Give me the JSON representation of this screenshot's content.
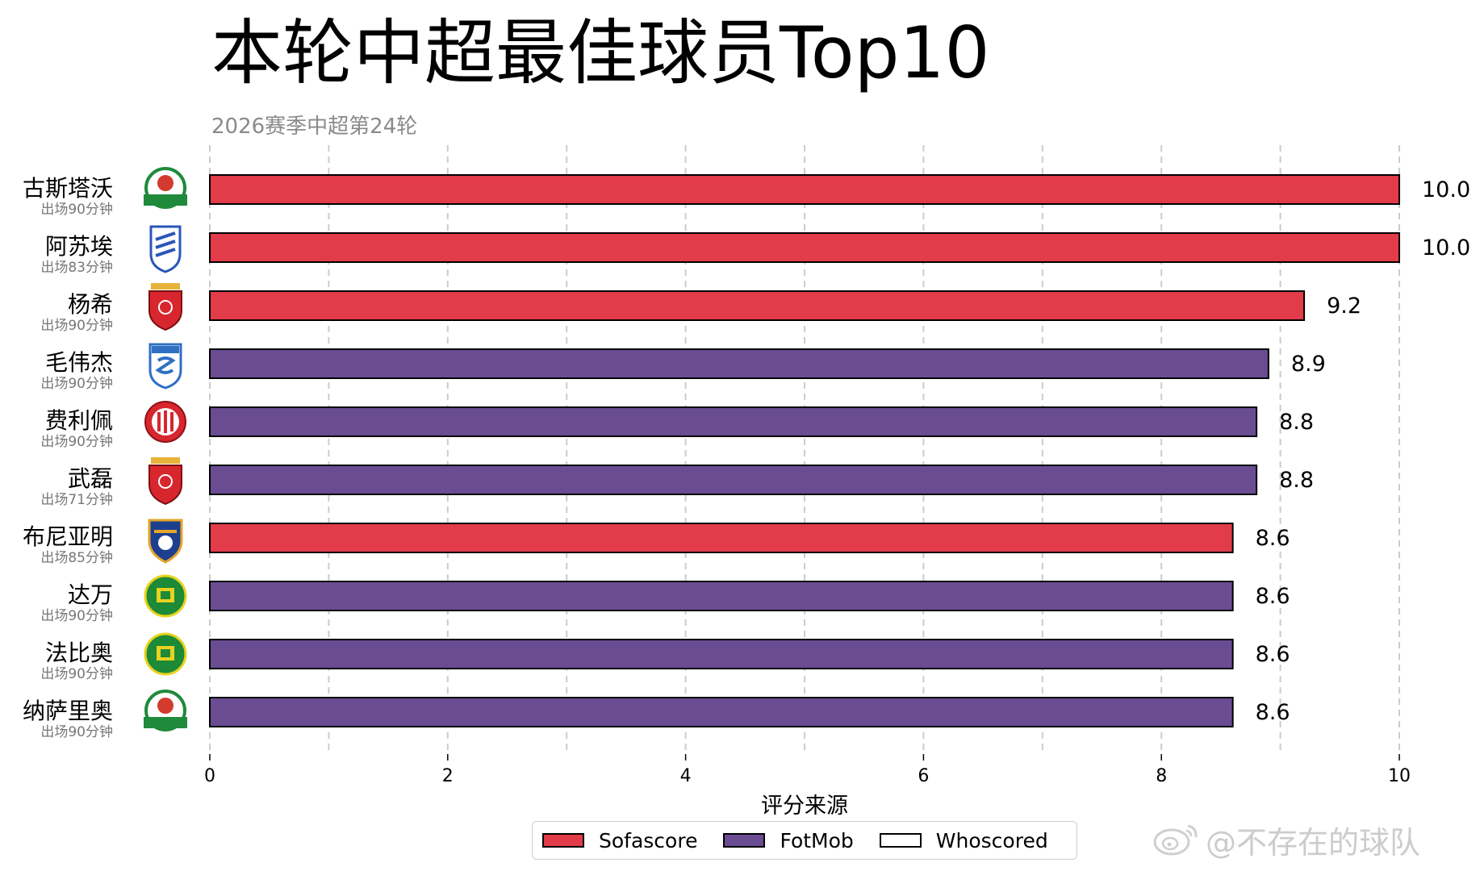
{
  "title": "本轮中超最佳球员Top10",
  "subtitle": "2026赛季中超第24轮",
  "watermark": "@不存在的球队",
  "colors": {
    "sofascore": "#E23B4A",
    "fotmob": "#6A4C93",
    "whoscored": "#FFFFFF",
    "grid": "#cccccc",
    "axis": "#000000",
    "minutes_text": "#777777"
  },
  "chart_data": {
    "type": "bar",
    "orientation": "horizontal",
    "xlabel": "评分来源",
    "xlim": [
      0,
      10
    ],
    "xticks": [
      0,
      2,
      4,
      6,
      8,
      10
    ],
    "grid": "vertical dashed at every 1.0",
    "legend_placement": "bottom-center",
    "legend": [
      {
        "name": "Sofascore",
        "color": "#E23B4A"
      },
      {
        "name": "FotMob",
        "color": "#6A4C93"
      },
      {
        "name": "Whoscored",
        "color": "#FFFFFF"
      }
    ],
    "players": [
      {
        "name": "古斯塔沃",
        "minutes": "出场90分钟",
        "value": 10.0,
        "label": "10.0",
        "source": "Sofascore",
        "club_logo": "henan-logo-icon"
      },
      {
        "name": "阿苏埃",
        "minutes": "出场83分钟",
        "value": 10.0,
        "label": "10.0",
        "source": "Sofascore",
        "club_logo": "shenhua-logo-icon"
      },
      {
        "name": "杨希",
        "minutes": "出场90分钟",
        "value": 9.2,
        "label": "9.2",
        "source": "Sofascore",
        "club_logo": "shanghai-port-logo-icon"
      },
      {
        "name": "毛伟杰",
        "minutes": "出场90分钟",
        "value": 8.9,
        "label": "8.9",
        "source": "FotMob",
        "club_logo": "dalian-logo-icon"
      },
      {
        "name": "费利佩",
        "minutes": "出场90分钟",
        "value": 8.8,
        "label": "8.8",
        "source": "FotMob",
        "club_logo": "chengdu-logo-icon"
      },
      {
        "name": "武磊",
        "minutes": "出场71分钟",
        "value": 8.8,
        "label": "8.8",
        "source": "FotMob",
        "club_logo": "shanghai-port-logo-icon"
      },
      {
        "name": "布尼亚明",
        "minutes": "出场85分钟",
        "value": 8.6,
        "label": "8.6",
        "source": "Sofascore",
        "club_logo": "yunnan-logo-icon"
      },
      {
        "name": "达万",
        "minutes": "出场90分钟",
        "value": 8.6,
        "label": "8.6",
        "source": "FotMob",
        "club_logo": "guoan-logo-icon"
      },
      {
        "name": "法比奥",
        "minutes": "出场90分钟",
        "value": 8.6,
        "label": "8.6",
        "source": "FotMob",
        "club_logo": "guoan-logo-icon"
      },
      {
        "name": "纳萨里奥",
        "minutes": "出场90分钟",
        "value": 8.6,
        "label": "8.6",
        "source": "FotMob",
        "club_logo": "henan-logo-icon"
      }
    ]
  }
}
